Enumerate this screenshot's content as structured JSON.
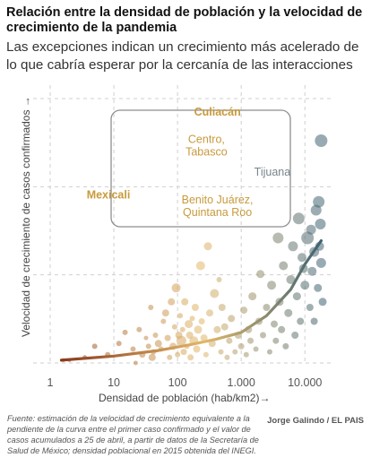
{
  "header": {
    "title": "Relación entre la densidad de población y la velocidad de crecimiento de la pandemia",
    "subtitle": "Las excepciones indican un crecimiento más acelerado de lo que cabría esperar por la cercanía de las interacciones"
  },
  "footer": {
    "source": "Fuente: estimación de la velocidad de crecimiento equivalente a la pendiente de la curva entre el primer caso confirmado y el valor de casos acumulados a 25 de abril, a partir de datos de la Secretaría de Salud de México; densidad poblacional en 2015 obtenida del INEGI.",
    "credit": "Jorge Galindo / EL PAIS"
  },
  "chart_data": {
    "type": "scatter",
    "xlabel": "Densidad de población (hab/km2)→",
    "ylabel": "Velocidad de crecimiento de casos confirmados →",
    "x_scale": "log",
    "xlim": [
      0.7,
      28000
    ],
    "ylim": [
      0,
      1
    ],
    "x_ticks": [
      1,
      10,
      100,
      1000,
      10000
    ],
    "x_tick_labels": [
      "1",
      "10",
      "100",
      "1.000",
      "10.000"
    ],
    "grid": true,
    "colors": {
      "low": "#8a3a1a",
      "mid": "#e2b86a",
      "high": "#3f6373",
      "highlight": "#c89a3c",
      "tijuana": "#7a858c"
    },
    "highlights": [
      {
        "label": "Culiacán",
        "x": 150,
        "y": 0.865,
        "size": 5.5
      },
      {
        "label": "Centro,\nTabasco",
        "x": 420,
        "y": 0.74,
        "size": 5.5
      },
      {
        "label": "Tijuana",
        "x": 1500,
        "y": 0.635,
        "size": 7
      },
      {
        "label": "Mexicali",
        "x": 25,
        "y": 0.605,
        "size": 5.5
      },
      {
        "label": "Benito Juárez,\nQuintana Roo",
        "x": 950,
        "y": 0.62,
        "size": 5.5
      }
    ],
    "trend": {
      "x": [
        1.5,
        10,
        50,
        150,
        400,
        1000,
        2500,
        6000,
        10000,
        18000
      ],
      "y": [
        0.01,
        0.025,
        0.045,
        0.065,
        0.085,
        0.11,
        0.17,
        0.265,
        0.355,
        0.44
      ]
    },
    "points": [
      {
        "x": 1.6,
        "y": 0.01,
        "s": 2
      },
      {
        "x": 2,
        "y": 0.01,
        "s": 2
      },
      {
        "x": 3.5,
        "y": 0.02,
        "s": 2.5
      },
      {
        "x": 5,
        "y": 0.06,
        "s": 3
      },
      {
        "x": 8,
        "y": 0.03,
        "s": 3
      },
      {
        "x": 12,
        "y": 0.07,
        "s": 3
      },
      {
        "x": 15,
        "y": 0.11,
        "s": 3
      },
      {
        "x": 20,
        "y": 0.05,
        "s": 3
      },
      {
        "x": 22,
        "y": 0.0,
        "s": 2.5
      },
      {
        "x": 25,
        "y": 0.12,
        "s": 3
      },
      {
        "x": 28,
        "y": 0.03,
        "s": 3.5
      },
      {
        "x": 32,
        "y": 0.09,
        "s": 2.5
      },
      {
        "x": 35,
        "y": 0.06,
        "s": 3
      },
      {
        "x": 38,
        "y": 0.2,
        "s": 3
      },
      {
        "x": 40,
        "y": 0.02,
        "s": 4
      },
      {
        "x": 42,
        "y": 0.04,
        "s": 3
      },
      {
        "x": 45,
        "y": 0.1,
        "s": 3
      },
      {
        "x": 50,
        "y": 0.07,
        "s": 4
      },
      {
        "x": 55,
        "y": 0.05,
        "s": 3
      },
      {
        "x": 60,
        "y": 0.15,
        "s": 3
      },
      {
        "x": 65,
        "y": 0.18,
        "s": 4
      },
      {
        "x": 70,
        "y": 0.09,
        "s": 3.5
      },
      {
        "x": 75,
        "y": 0.02,
        "s": 3
      },
      {
        "x": 80,
        "y": 0.22,
        "s": 4
      },
      {
        "x": 85,
        "y": 0.06,
        "s": 4
      },
      {
        "x": 90,
        "y": 0.13,
        "s": 3
      },
      {
        "x": 95,
        "y": 0.27,
        "s": 5
      },
      {
        "x": 100,
        "y": 0.03,
        "s": 3
      },
      {
        "x": 105,
        "y": 0.1,
        "s": 4
      },
      {
        "x": 110,
        "y": 0.17,
        "s": 3
      },
      {
        "x": 115,
        "y": 0.08,
        "s": 5.5
      },
      {
        "x": 120,
        "y": 0.12,
        "s": 3
      },
      {
        "x": 125,
        "y": 0.04,
        "s": 3.5
      },
      {
        "x": 130,
        "y": 0.22,
        "s": 4
      },
      {
        "x": 140,
        "y": 0.06,
        "s": 3
      },
      {
        "x": 150,
        "y": 0.14,
        "s": 4.5
      },
      {
        "x": 155,
        "y": 0.1,
        "s": 4
      },
      {
        "x": 160,
        "y": 0.02,
        "s": 3.5
      },
      {
        "x": 170,
        "y": 0.16,
        "s": 3
      },
      {
        "x": 180,
        "y": 0.08,
        "s": 5
      },
      {
        "x": 190,
        "y": 0.2,
        "s": 4
      },
      {
        "x": 200,
        "y": 0.05,
        "s": 4
      },
      {
        "x": 210,
        "y": 0.12,
        "s": 4.5
      },
      {
        "x": 230,
        "y": 0.35,
        "s": 5
      },
      {
        "x": 240,
        "y": 0.15,
        "s": 3.5
      },
      {
        "x": 260,
        "y": 0.09,
        "s": 4
      },
      {
        "x": 280,
        "y": 0.03,
        "s": 3
      },
      {
        "x": 300,
        "y": 0.42,
        "s": 4.5
      },
      {
        "x": 320,
        "y": 0.18,
        "s": 4
      },
      {
        "x": 350,
        "y": 0.07,
        "s": 4
      },
      {
        "x": 380,
        "y": 0.25,
        "s": 5
      },
      {
        "x": 420,
        "y": 0.12,
        "s": 4
      },
      {
        "x": 450,
        "y": 0.3,
        "s": 3
      },
      {
        "x": 480,
        "y": 0.04,
        "s": 3
      },
      {
        "x": 500,
        "y": 0.2,
        "s": 4
      },
      {
        "x": 550,
        "y": 0.13,
        "s": 4
      },
      {
        "x": 600,
        "y": 0.02,
        "s": 3
      },
      {
        "x": 650,
        "y": 0.08,
        "s": 3.5
      },
      {
        "x": 700,
        "y": 0.16,
        "s": 4
      },
      {
        "x": 800,
        "y": 0.04,
        "s": 3
      },
      {
        "x": 900,
        "y": 0.1,
        "s": 4
      },
      {
        "x": 1000,
        "y": 0.06,
        "s": 3.5
      },
      {
        "x": 1100,
        "y": 0.19,
        "s": 4
      },
      {
        "x": 1200,
        "y": 0.03,
        "s": 3
      },
      {
        "x": 1300,
        "y": 0.12,
        "s": 4
      },
      {
        "x": 1400,
        "y": 0.08,
        "s": 3.5
      },
      {
        "x": 1500,
        "y": 0.24,
        "s": 4.5
      },
      {
        "x": 1700,
        "y": 0.05,
        "s": 3
      },
      {
        "x": 1900,
        "y": 0.15,
        "s": 4
      },
      {
        "x": 2000,
        "y": 0.32,
        "s": 4.5
      },
      {
        "x": 2200,
        "y": 0.1,
        "s": 3.5
      },
      {
        "x": 2500,
        "y": 0.2,
        "s": 4
      },
      {
        "x": 2800,
        "y": 0.04,
        "s": 3
      },
      {
        "x": 3000,
        "y": 0.28,
        "s": 5
      },
      {
        "x": 3300,
        "y": 0.14,
        "s": 4
      },
      {
        "x": 3500,
        "y": 0.08,
        "s": 3.5
      },
      {
        "x": 3800,
        "y": 0.45,
        "s": 6
      },
      {
        "x": 4000,
        "y": 0.22,
        "s": 4.5
      },
      {
        "x": 4300,
        "y": 0.12,
        "s": 4
      },
      {
        "x": 4600,
        "y": 0.35,
        "s": 5
      },
      {
        "x": 5000,
        "y": 0.06,
        "s": 3.5
      },
      {
        "x": 5500,
        "y": 0.18,
        "s": 4.5
      },
      {
        "x": 6000,
        "y": 0.3,
        "s": 5
      },
      {
        "x": 6500,
        "y": 0.42,
        "s": 5.5
      },
      {
        "x": 7000,
        "y": 0.1,
        "s": 4
      },
      {
        "x": 7500,
        "y": 0.24,
        "s": 4.5
      },
      {
        "x": 8000,
        "y": 0.52,
        "s": 6.5
      },
      {
        "x": 8500,
        "y": 0.15,
        "s": 4
      },
      {
        "x": 9000,
        "y": 0.38,
        "s": 5
      },
      {
        "x": 10000,
        "y": 0.28,
        "s": 5
      },
      {
        "x": 11000,
        "y": 0.45,
        "s": 7
      },
      {
        "x": 12000,
        "y": 0.2,
        "s": 4
      },
      {
        "x": 13000,
        "y": 0.33,
        "s": 5
      },
      {
        "x": 14000,
        "y": 0.4,
        "s": 5.5
      },
      {
        "x": 15000,
        "y": 0.55,
        "s": 6
      },
      {
        "x": 16000,
        "y": 0.27,
        "s": 4.5
      },
      {
        "x": 17000,
        "y": 0.42,
        "s": 5
      },
      {
        "x": 18000,
        "y": 0.36,
        "s": 5.5
      },
      {
        "x": 17500,
        "y": 0.5,
        "s": 6
      },
      {
        "x": 14000,
        "y": 0.15,
        "s": 4
      },
      {
        "x": 16500,
        "y": 0.58,
        "s": 6.5
      },
      {
        "x": 19000,
        "y": 0.22,
        "s": 4.5
      },
      {
        "x": 12500,
        "y": 0.48,
        "s": 5.5
      },
      {
        "x": 9500,
        "y": 0.34,
        "s": 5
      },
      {
        "x": 18000,
        "y": 0.8,
        "s": 7
      }
    ]
  }
}
